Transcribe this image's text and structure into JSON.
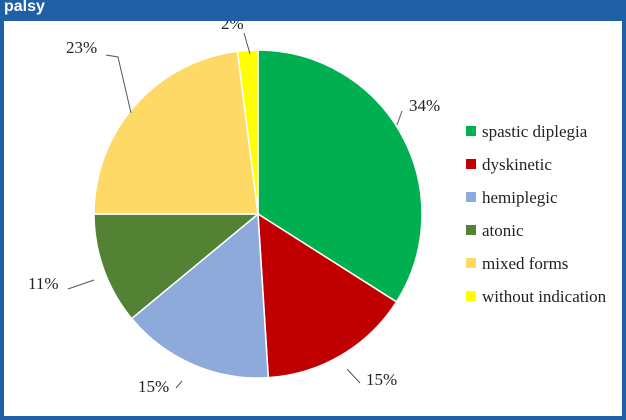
{
  "header": {
    "title": "palsy"
  },
  "chart_data": {
    "type": "pie",
    "series": [
      {
        "name": "spastic diplegia",
        "value": 34,
        "label": "34%",
        "color": "#00b050"
      },
      {
        "name": "dyskinetic",
        "value": 15,
        "label": "15%",
        "color": "#c00000"
      },
      {
        "name": "hemiplegic",
        "value": 15,
        "label": "15%",
        "color": "#8eaadb"
      },
      {
        "name": "atonic",
        "value": 11,
        "label": "11%",
        "color": "#548235"
      },
      {
        "name": "mixed forms",
        "value": 23,
        "label": "23%",
        "color": "#ffd966"
      },
      {
        "name": "without indication",
        "value": 2,
        "label": "2%",
        "color": "#ffff00"
      }
    ],
    "legend": {
      "position": "right"
    },
    "start": "12 o'clock, clockwise"
  }
}
